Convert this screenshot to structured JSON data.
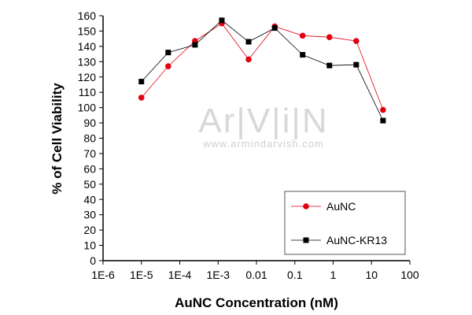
{
  "chart_data": {
    "type": "line",
    "title": "",
    "xlabel": "AuNC Concentration (nM)",
    "ylabel": "% of Cell Viability",
    "xscale": "log",
    "xlim": [
      1e-06,
      100
    ],
    "ylim": [
      0,
      160
    ],
    "x_ticks": [
      1e-06,
      1e-05,
      0.0001,
      0.001,
      0.01,
      0.1,
      1,
      10,
      100
    ],
    "x_tick_labels": [
      "1E-6",
      "1E-5",
      "1E-4",
      "1E-3",
      "0.01",
      "0.1",
      "1",
      "10",
      "100"
    ],
    "y_ticks": [
      0,
      10,
      20,
      30,
      40,
      50,
      60,
      70,
      80,
      90,
      100,
      110,
      120,
      130,
      140,
      150,
      160
    ],
    "y_tick_labels": [
      "0",
      "10",
      "20",
      "30",
      "40",
      "50",
      "60",
      "70",
      "80",
      "90",
      "100",
      "110",
      "120",
      "130",
      "140",
      "150",
      "160"
    ],
    "legend_position": "bottom-right",
    "grid": false,
    "series": [
      {
        "name": "AuNC",
        "color": "#e3000f",
        "marker": "circle",
        "x": [
          1e-05,
          5e-05,
          0.00025,
          0.00125,
          0.00625,
          0.03,
          0.16,
          0.8,
          4,
          20
        ],
        "y": [
          106.5,
          127,
          143.5,
          155,
          131.5,
          153,
          147,
          146,
          143.5,
          98.5
        ]
      },
      {
        "name": "AuNC-KR13",
        "color": "#000000",
        "marker": "square",
        "x": [
          1e-05,
          5e-05,
          0.00025,
          0.00125,
          0.00625,
          0.03,
          0.16,
          0.8,
          4,
          20
        ],
        "y": [
          117,
          136,
          141,
          157,
          143,
          152,
          134.5,
          127.5,
          128,
          91.5
        ]
      }
    ]
  },
  "watermark": {
    "logo": "Ar|V|i|N",
    "url": "www.armindarvish.com"
  }
}
